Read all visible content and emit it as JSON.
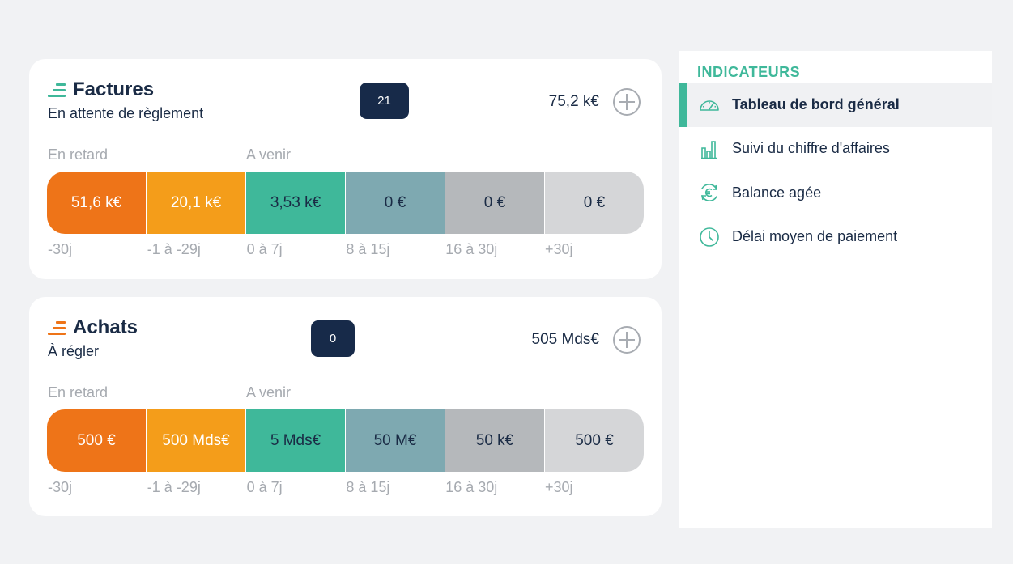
{
  "factures": {
    "title": "Factures",
    "subtitle": "En attente de règlement",
    "count": "21",
    "total": "75,2 k€",
    "late_label": "En retard",
    "upcoming_label": "A venir",
    "segments": [
      {
        "value": "51,6 k€",
        "color": "#ee7418",
        "text_color": "#ffffff"
      },
      {
        "value": "20,1 k€",
        "color": "#f49d1a",
        "text_color": "#ffffff"
      },
      {
        "value": "3,53 k€",
        "color": "#3fb89a",
        "text_color": "#1a2b45"
      },
      {
        "value": "0 €",
        "color": "#7ea9b1",
        "text_color": "#1a2b45"
      },
      {
        "value": "0 €",
        "color": "#b5b8bb",
        "text_color": "#1a2b45"
      },
      {
        "value": "0 €",
        "color": "#d5d6d8",
        "text_color": "#1a2b45"
      }
    ],
    "ranges": [
      "-30j",
      "-1 à -29j",
      "0 à 7j",
      "8 à 15j",
      "16 à 30j",
      "+30j"
    ]
  },
  "achats": {
    "title": "Achats",
    "subtitle": "À régler",
    "count": "0",
    "total": "505 Mds€",
    "late_label": "En retard",
    "upcoming_label": "A venir",
    "segments": [
      {
        "value": "500 €",
        "color": "#ee7418",
        "text_color": "#ffffff"
      },
      {
        "value": "500 Mds€",
        "color": "#f49d1a",
        "text_color": "#ffffff"
      },
      {
        "value": "5 Mds€",
        "color": "#3fb89a",
        "text_color": "#1a2b45"
      },
      {
        "value": "50 M€",
        "color": "#7ea9b1",
        "text_color": "#1a2b45"
      },
      {
        "value": "50 k€",
        "color": "#b5b8bb",
        "text_color": "#1a2b45"
      },
      {
        "value": "500 €",
        "color": "#d5d6d8",
        "text_color": "#1a2b45"
      }
    ],
    "ranges": [
      "-30j",
      "-1 à -29j",
      "0 à 7j",
      "8 à 15j",
      "16 à 30j",
      "+30j"
    ]
  },
  "indicators": {
    "title": "INDICATEURS",
    "accent": "#3fb89a",
    "items": [
      {
        "label": "Tableau de bord général",
        "icon": "dashboard-gauge-icon",
        "active": true
      },
      {
        "label": "Suivi du chiffre d'affaires",
        "icon": "revenue-chart-icon",
        "active": false
      },
      {
        "label": "Balance agée",
        "icon": "euro-cycle-icon",
        "active": false
      },
      {
        "label": "Délai moyen de paiement",
        "icon": "clock-icon",
        "active": false
      }
    ]
  }
}
